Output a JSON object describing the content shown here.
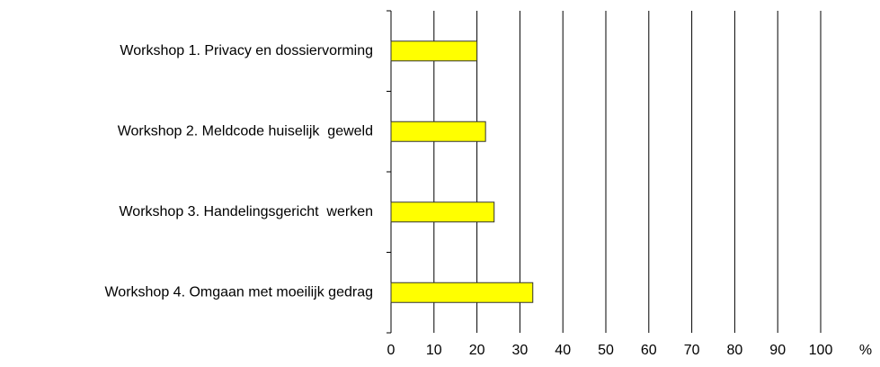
{
  "chart_data": {
    "type": "bar",
    "orientation": "horizontal",
    "categories": [
      "Workshop 1. Privacy en dossiervorming",
      "Workshop 2. Meldcode huiselijk  geweld",
      "Workshop 3. Handelingsgericht  werken",
      "Workshop 4. Omgaan met moeilijk gedrag"
    ],
    "values": [
      20,
      22,
      24,
      33
    ],
    "color": "#ffff00",
    "xlim": [
      0,
      100
    ],
    "xticks": [
      0,
      10,
      20,
      30,
      40,
      50,
      60,
      70,
      80,
      90,
      100
    ],
    "xlabel": "%",
    "grid": true
  }
}
